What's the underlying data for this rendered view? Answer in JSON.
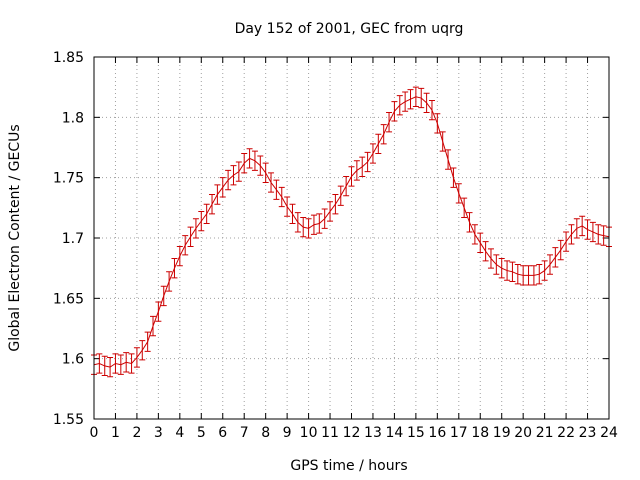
{
  "chart_data": {
    "type": "line",
    "title": "Day 152 of 2001, GEC from uqrg",
    "xlabel": "GPS time / hours",
    "ylabel": "Global Electron Content / GECUs",
    "xlim": [
      0,
      24
    ],
    "ylim": [
      1.55,
      1.85
    ],
    "x_ticks": [
      0,
      1,
      2,
      3,
      4,
      5,
      6,
      7,
      8,
      9,
      10,
      11,
      12,
      13,
      14,
      15,
      16,
      17,
      18,
      19,
      20,
      21,
      22,
      23,
      24
    ],
    "x_tick_labels": [
      "0",
      "1",
      "2",
      "3",
      "4",
      "5",
      "6",
      "7",
      "8",
      "9",
      "10",
      "11",
      "12",
      "13",
      "14",
      "15",
      "16",
      "17",
      "18",
      "19",
      "20",
      "21",
      "22",
      "23",
      "24"
    ],
    "y_ticks": [
      1.55,
      1.6,
      1.65,
      1.7,
      1.75,
      1.8,
      1.85
    ],
    "y_tick_labels": [
      "1.55",
      "1.6",
      "1.65",
      "1.7",
      "1.75",
      "1.8",
      "1.85"
    ],
    "grid": true,
    "color": "#cc0000",
    "series": [
      {
        "x": [
          0,
          0.25,
          0.5,
          0.75,
          1,
          1.25,
          1.5,
          1.75,
          2,
          2.25,
          2.5,
          2.75,
          3,
          3.25,
          3.5,
          3.75,
          4,
          4.25,
          4.5,
          4.75,
          5,
          5.25,
          5.5,
          5.75,
          6,
          6.25,
          6.5,
          6.75,
          7,
          7.25,
          7.5,
          7.75,
          8,
          8.25,
          8.5,
          8.75,
          9,
          9.25,
          9.5,
          9.75,
          10,
          10.25,
          10.5,
          10.75,
          11,
          11.25,
          11.5,
          11.75,
          12,
          12.25,
          12.5,
          12.75,
          13,
          13.25,
          13.5,
          13.75,
          14,
          14.25,
          14.5,
          14.75,
          15,
          15.25,
          15.5,
          15.75,
          16,
          16.25,
          16.5,
          16.75,
          17,
          17.25,
          17.5,
          17.75,
          18,
          18.25,
          18.5,
          18.75,
          19,
          19.25,
          19.5,
          19.75,
          20,
          20.25,
          20.5,
          20.75,
          21,
          21.25,
          21.5,
          21.75,
          22,
          22.25,
          22.5,
          22.75,
          23,
          23.25,
          23.5,
          23.75,
          24
        ],
        "y": [
          1.595,
          1.596,
          1.594,
          1.593,
          1.596,
          1.595,
          1.597,
          1.596,
          1.601,
          1.607,
          1.614,
          1.627,
          1.639,
          1.652,
          1.664,
          1.675,
          1.685,
          1.694,
          1.701,
          1.708,
          1.714,
          1.72,
          1.728,
          1.736,
          1.742,
          1.748,
          1.752,
          1.755,
          1.762,
          1.766,
          1.764,
          1.76,
          1.754,
          1.746,
          1.74,
          1.734,
          1.726,
          1.72,
          1.713,
          1.709,
          1.708,
          1.711,
          1.712,
          1.716,
          1.722,
          1.728,
          1.735,
          1.743,
          1.751,
          1.756,
          1.759,
          1.763,
          1.77,
          1.778,
          1.786,
          1.796,
          1.805,
          1.81,
          1.813,
          1.815,
          1.817,
          1.816,
          1.812,
          1.806,
          1.795,
          1.78,
          1.765,
          1.75,
          1.737,
          1.725,
          1.713,
          1.703,
          1.696,
          1.689,
          1.683,
          1.678,
          1.675,
          1.673,
          1.672,
          1.67,
          1.669,
          1.669,
          1.669,
          1.67,
          1.673,
          1.678,
          1.684,
          1.69,
          1.697,
          1.703,
          1.708,
          1.71,
          1.707,
          1.705,
          1.703,
          1.702,
          1.701
        ],
        "err": 0.008
      }
    ]
  }
}
